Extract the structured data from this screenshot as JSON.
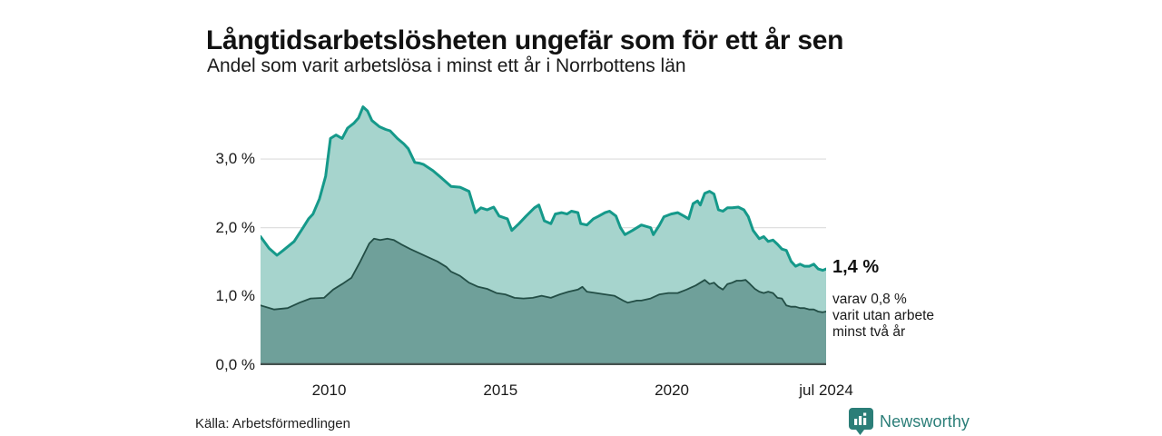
{
  "header": {
    "title": "Långtidsarbetslösheten ungefär som för ett år sen",
    "subtitle": "Andel som varit arbetslösa i minst ett år i Norrbottens län"
  },
  "annotation": {
    "value_label": "1,4 %",
    "detail_lines": [
      "varav 0,8 %",
      "varit utan arbete",
      "minst två år"
    ]
  },
  "footer": {
    "source": "Källa: Arbetsförmedlingen",
    "brand": "Newsworthy",
    "brand_color": "#2b7e78"
  },
  "chart_data": {
    "type": "area",
    "title": "Långtidsarbetslösheten ungefär som för ett år sen",
    "subtitle": "Andel som varit arbetslösa i minst ett år i Norrbottens län",
    "grid": true,
    "x_range": [
      2008.0,
      2024.5
    ],
    "x_axis": {
      "ticks": [
        {
          "x": 2010,
          "label": "2010"
        },
        {
          "x": 2015,
          "label": "2015"
        },
        {
          "x": 2020,
          "label": "2020"
        },
        {
          "x": 2024.5,
          "label": "jul 2024"
        }
      ]
    },
    "y_axis": {
      "max": 3.86,
      "unit": "%",
      "ticks": [
        {
          "value": 0,
          "label": "0,0 %"
        },
        {
          "value": 1,
          "label": "1,0 %"
        },
        {
          "value": 2,
          "label": "2,0 %"
        },
        {
          "value": 3,
          "label": "3,0 %"
        }
      ]
    },
    "colors": {
      "grid": "#dcdcdc",
      "baseline": "#45524f"
    },
    "series": [
      {
        "name": "arbetslösa minst ett år",
        "line_color": "#15998a",
        "line_width": 3,
        "fill_color": "#a6d4cd",
        "x": [
          2008.0,
          2008.25,
          2008.48,
          2008.66,
          2008.98,
          2009.24,
          2009.4,
          2009.53,
          2009.72,
          2009.9,
          2010.04,
          2010.2,
          2010.38,
          2010.54,
          2010.72,
          2010.86,
          2010.99,
          2011.12,
          2011.25,
          2011.47,
          2011.65,
          2011.78,
          2011.99,
          2012.18,
          2012.31,
          2012.5,
          2012.63,
          2012.76,
          2013.03,
          2013.29,
          2013.56,
          2013.82,
          2014.08,
          2014.27,
          2014.43,
          2014.61,
          2014.8,
          2014.96,
          2015.2,
          2015.33,
          2015.54,
          2015.75,
          2015.99,
          2016.12,
          2016.28,
          2016.47,
          2016.6,
          2016.78,
          2016.94,
          2017.07,
          2017.26,
          2017.34,
          2017.52,
          2017.71,
          2017.87,
          2018.05,
          2018.18,
          2018.37,
          2018.5,
          2018.63,
          2018.85,
          2019.11,
          2019.38,
          2019.46,
          2019.64,
          2019.77,
          2019.98,
          2020.17,
          2020.35,
          2020.49,
          2020.62,
          2020.75,
          2020.83,
          2020.96,
          2021.1,
          2021.23,
          2021.36,
          2021.49,
          2021.62,
          2021.76,
          2021.94,
          2022.1,
          2022.23,
          2022.37,
          2022.55,
          2022.68,
          2022.81,
          2022.95,
          2023.08,
          2023.21,
          2023.34,
          2023.48,
          2023.61,
          2023.74,
          2023.87,
          2024.01,
          2024.14,
          2024.27,
          2024.4,
          2024.5
        ],
        "values": [
          1.87,
          1.7,
          1.6,
          1.67,
          1.8,
          2.0,
          2.13,
          2.2,
          2.42,
          2.75,
          3.3,
          3.35,
          3.3,
          3.45,
          3.52,
          3.6,
          3.76,
          3.7,
          3.56,
          3.47,
          3.43,
          3.41,
          3.3,
          3.22,
          3.15,
          2.95,
          2.94,
          2.92,
          2.83,
          2.72,
          2.6,
          2.59,
          2.53,
          2.22,
          2.29,
          2.26,
          2.3,
          2.17,
          2.13,
          1.96,
          2.06,
          2.17,
          2.29,
          2.33,
          2.1,
          2.06,
          2.2,
          2.22,
          2.2,
          2.24,
          2.22,
          2.06,
          2.04,
          2.13,
          2.17,
          2.22,
          2.24,
          2.17,
          2.0,
          1.9,
          1.96,
          2.04,
          2.0,
          1.9,
          2.04,
          2.16,
          2.2,
          2.22,
          2.17,
          2.13,
          2.35,
          2.39,
          2.33,
          2.5,
          2.53,
          2.49,
          2.26,
          2.24,
          2.29,
          2.29,
          2.3,
          2.26,
          2.16,
          1.96,
          1.84,
          1.87,
          1.8,
          1.82,
          1.76,
          1.69,
          1.67,
          1.51,
          1.44,
          1.47,
          1.44,
          1.44,
          1.47,
          1.4,
          1.38,
          1.4
        ],
        "last_value_label": "1,4 %"
      },
      {
        "name": "varav utan arbete minst två år",
        "line_color": "#234e46",
        "line_width": 1.8,
        "fill_color": "#6fa09a",
        "x": [
          2008.0,
          2008.4,
          2008.79,
          2009.14,
          2009.46,
          2009.85,
          2010.12,
          2010.38,
          2010.65,
          2010.91,
          2011.17,
          2011.31,
          2011.49,
          2011.7,
          2011.89,
          2012.1,
          2012.37,
          2012.63,
          2012.89,
          2013.16,
          2013.42,
          2013.56,
          2013.82,
          2014.08,
          2014.35,
          2014.61,
          2014.88,
          2015.14,
          2015.41,
          2015.67,
          2015.94,
          2016.2,
          2016.47,
          2016.73,
          2016.99,
          2017.26,
          2017.39,
          2017.52,
          2017.79,
          2018.05,
          2018.32,
          2018.58,
          2018.71,
          2018.98,
          2019.11,
          2019.38,
          2019.64,
          2019.9,
          2020.17,
          2020.43,
          2020.7,
          2020.96,
          2021.1,
          2021.23,
          2021.36,
          2021.49,
          2021.62,
          2021.76,
          2021.89,
          2022.02,
          2022.15,
          2022.28,
          2022.42,
          2022.55,
          2022.68,
          2022.81,
          2022.95,
          2023.08,
          2023.21,
          2023.34,
          2023.48,
          2023.61,
          2023.74,
          2023.87,
          2024.01,
          2024.14,
          2024.27,
          2024.4,
          2024.5
        ],
        "values": [
          0.87,
          0.81,
          0.83,
          0.91,
          0.97,
          0.98,
          1.1,
          1.18,
          1.27,
          1.51,
          1.77,
          1.84,
          1.82,
          1.84,
          1.82,
          1.76,
          1.69,
          1.63,
          1.57,
          1.51,
          1.43,
          1.36,
          1.3,
          1.2,
          1.14,
          1.11,
          1.05,
          1.03,
          0.98,
          0.97,
          0.98,
          1.01,
          0.98,
          1.03,
          1.07,
          1.1,
          1.14,
          1.07,
          1.05,
          1.03,
          1.01,
          0.94,
          0.91,
          0.94,
          0.94,
          0.97,
          1.03,
          1.05,
          1.05,
          1.1,
          1.16,
          1.24,
          1.18,
          1.2,
          1.14,
          1.1,
          1.18,
          1.2,
          1.23,
          1.23,
          1.24,
          1.18,
          1.11,
          1.07,
          1.05,
          1.07,
          1.05,
          0.98,
          0.97,
          0.87,
          0.85,
          0.85,
          0.83,
          0.83,
          0.81,
          0.81,
          0.78,
          0.77,
          0.78
        ],
        "last_value_label": "0,8 %"
      }
    ]
  }
}
